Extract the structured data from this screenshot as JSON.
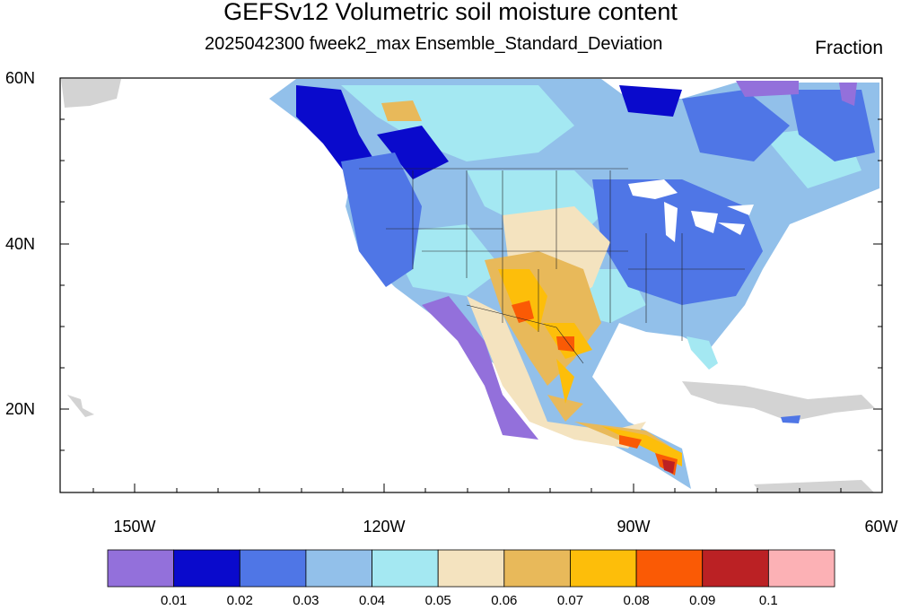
{
  "title": "GEFSv12 Volumetric soil moisture content",
  "subtitle": "2025042300 fweek2_max Ensemble_Standard_Deviation",
  "units": "Fraction",
  "map": {
    "lon_range": [
      -160,
      -60
    ],
    "lat_range": [
      10,
      60
    ],
    "lon_labels": [
      "150W",
      "120W",
      "90W",
      "60W"
    ],
    "lat_labels": [
      "60N",
      "40N",
      "20N"
    ]
  },
  "colorbar": {
    "colors": [
      "#9370db",
      "#0a0acc",
      "#4f76e6",
      "#92c0ea",
      "#a4e8f2",
      "#f4e3bf",
      "#e8b95a",
      "#fdbe0a",
      "#fa5a05",
      "#bb2124",
      "#fcb1b5"
    ],
    "labels": [
      "0.01",
      "0.02",
      "0.03",
      "0.04",
      "0.05",
      "0.06",
      "0.07",
      "0.08",
      "0.09",
      "0.1"
    ]
  }
}
